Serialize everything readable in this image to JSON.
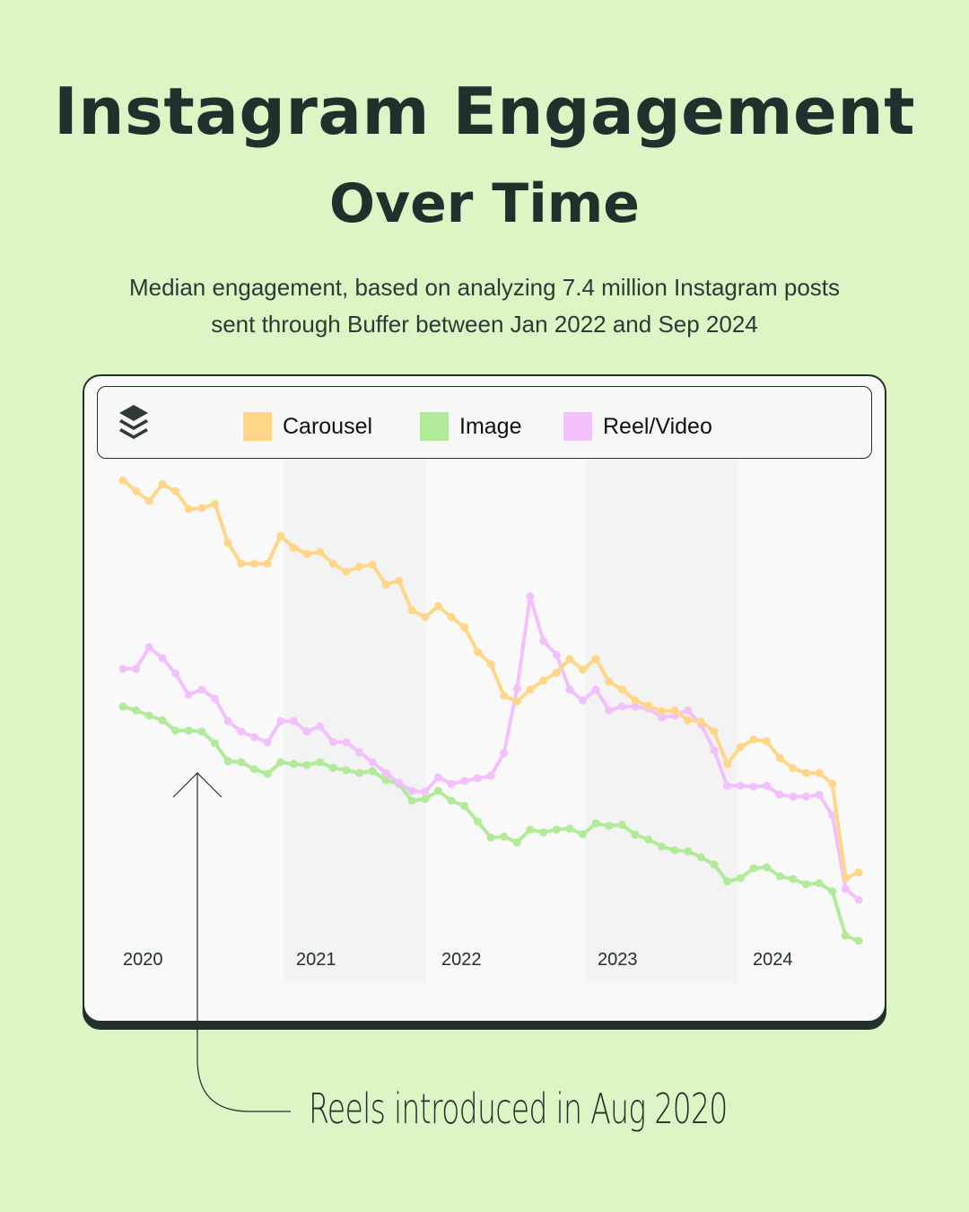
{
  "header": {
    "title_line1": "Instagram Engagement",
    "title_line2": "Over Time",
    "subtitle_line1": "Median engagement, based on analyzing 7.4 million Instagram posts",
    "subtitle_line2": "sent through Buffer between Jan 2022 and Sep 2024"
  },
  "legend": {
    "logo_icon": "buffer-layers-icon",
    "items": [
      {
        "label": "Carousel",
        "color": "#ffd687"
      },
      {
        "label": "Image",
        "color": "#b1ea99"
      },
      {
        "label": "Reel/Video",
        "color": "#f2c0fc"
      }
    ]
  },
  "annotation": {
    "text": "Reels introduced in Aug 2020"
  },
  "colors": {
    "background": "#ddf5c4",
    "card": "#f9f9f9",
    "band": "#f3f3f3",
    "ink": "#22302d"
  },
  "chart_data": {
    "type": "line",
    "title": "Instagram Engagement Over Time",
    "subtitle": "Median engagement, based on analyzing 7.4 million Instagram posts sent through Buffer between Jan 2022 and Sep 2024",
    "xlabel": "",
    "ylabel": "Median engagement (relative index, no axis shown)",
    "x_tick_labels": [
      "2020",
      "2021",
      "2022",
      "2023",
      "2024"
    ],
    "x_start": "Jan 2020",
    "x_end": "Sep 2024",
    "points_per_series": 57,
    "ylim": [
      0,
      100
    ],
    "grid": false,
    "legend_position": "top",
    "shaded_years": [
      "2021",
      "2023"
    ],
    "annotations": [
      {
        "text": "Reels introduced in Aug 2020",
        "x_index": 7
      }
    ],
    "series": [
      {
        "name": "Carousel",
        "color": "#ffd687",
        "values": [
          100.0,
          97.7,
          95.6,
          99.2,
          97.7,
          93.9,
          94.1,
          95.0,
          86.7,
          82.3,
          82.3,
          82.3,
          88.2,
          85.7,
          84.4,
          84.8,
          82.3,
          80.6,
          81.7,
          82.1,
          77.9,
          78.7,
          72.4,
          71.0,
          73.3,
          71.0,
          68.8,
          63.6,
          61.0,
          54.3,
          53.1,
          55.6,
          57.5,
          59.2,
          62.1,
          59.8,
          62.1,
          57.3,
          55.6,
          53.3,
          52.2,
          51.0,
          51.2,
          49.1,
          48.8,
          46.7,
          39.8,
          43.4,
          45.0,
          44.6,
          41.1,
          38.9,
          37.9,
          37.9,
          35.6,
          15.6,
          16.8
        ]
      },
      {
        "name": "Image",
        "color": "#b1ea99",
        "values": [
          52.0,
          51.2,
          50.1,
          49.1,
          46.9,
          46.9,
          46.7,
          44.2,
          40.4,
          40.2,
          38.7,
          37.7,
          40.2,
          39.8,
          39.6,
          40.2,
          39.0,
          38.5,
          37.9,
          38.3,
          36.4,
          35.6,
          32.0,
          32.4,
          34.1,
          32.0,
          30.9,
          27.6,
          24.2,
          24.4,
          23.2,
          25.9,
          25.3,
          25.9,
          26.1,
          24.9,
          27.2,
          26.7,
          26.9,
          24.8,
          23.8,
          22.3,
          21.5,
          21.3,
          20.0,
          18.5,
          14.9,
          15.6,
          17.7,
          17.9,
          16.0,
          15.4,
          14.3,
          14.5,
          12.8,
          3.4,
          2.3
        ]
      },
      {
        "name": "Reel/Video",
        "color": "#f2c0fc",
        "values": [
          60.0,
          60.0,
          64.6,
          62.3,
          59.0,
          54.5,
          55.6,
          53.7,
          48.9,
          46.7,
          45.5,
          44.4,
          48.9,
          48.9,
          46.7,
          47.8,
          44.5,
          44.4,
          42.3,
          40.2,
          37.9,
          35.8,
          34.1,
          33.9,
          37.0,
          35.6,
          36.2,
          36.8,
          37.3,
          42.1,
          55.8,
          75.4,
          65.9,
          63.0,
          55.6,
          53.3,
          55.6,
          51.2,
          52.0,
          52.0,
          51.6,
          49.7,
          50.1,
          51.2,
          48.2,
          42.7,
          35.2,
          35.2,
          35.0,
          35.2,
          33.3,
          32.9,
          32.9,
          33.3,
          28.9,
          13.3,
          11.0
        ]
      }
    ]
  },
  "axis": {
    "years": [
      "2020",
      "2021",
      "2022",
      "2023",
      "2024"
    ]
  }
}
